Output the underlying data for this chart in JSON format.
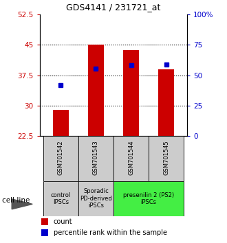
{
  "title": "GDS4141 / 231721_at",
  "categories": [
    "GSM701542",
    "GSM701543",
    "GSM701544",
    "GSM701545"
  ],
  "bar_values": [
    29.0,
    45.0,
    43.8,
    39.0
  ],
  "bar_baseline": 22.5,
  "bar_color": "#cc0000",
  "dot_values": [
    35.0,
    39.2,
    40.0,
    40.2
  ],
  "dot_color": "#0000cc",
  "ylim_left": [
    22.5,
    52.5
  ],
  "ylim_right": [
    0,
    100
  ],
  "yticks_left": [
    22.5,
    30,
    37.5,
    45,
    52.5
  ],
  "yticks_right": [
    0,
    25,
    50,
    75,
    100
  ],
  "ytick_labels_right": [
    "0",
    "25",
    "50",
    "75",
    "100%"
  ],
  "ytick_labels_left": [
    "22.5",
    "30",
    "37.5",
    "45",
    "52.5"
  ],
  "hlines": [
    30,
    37.5,
    45
  ],
  "group_data": [
    [
      0,
      0,
      "control\nIPSCs",
      "#cccccc"
    ],
    [
      1,
      1,
      "Sporadic\nPD-derived\niPSCs",
      "#cccccc"
    ],
    [
      2,
      3,
      "presenilin 2 (PS2)\niPSCs",
      "#44ee44"
    ]
  ],
  "cell_line_label": "cell line",
  "ylabel_right_color": "#0000cc",
  "ylabel_left_color": "#cc0000"
}
